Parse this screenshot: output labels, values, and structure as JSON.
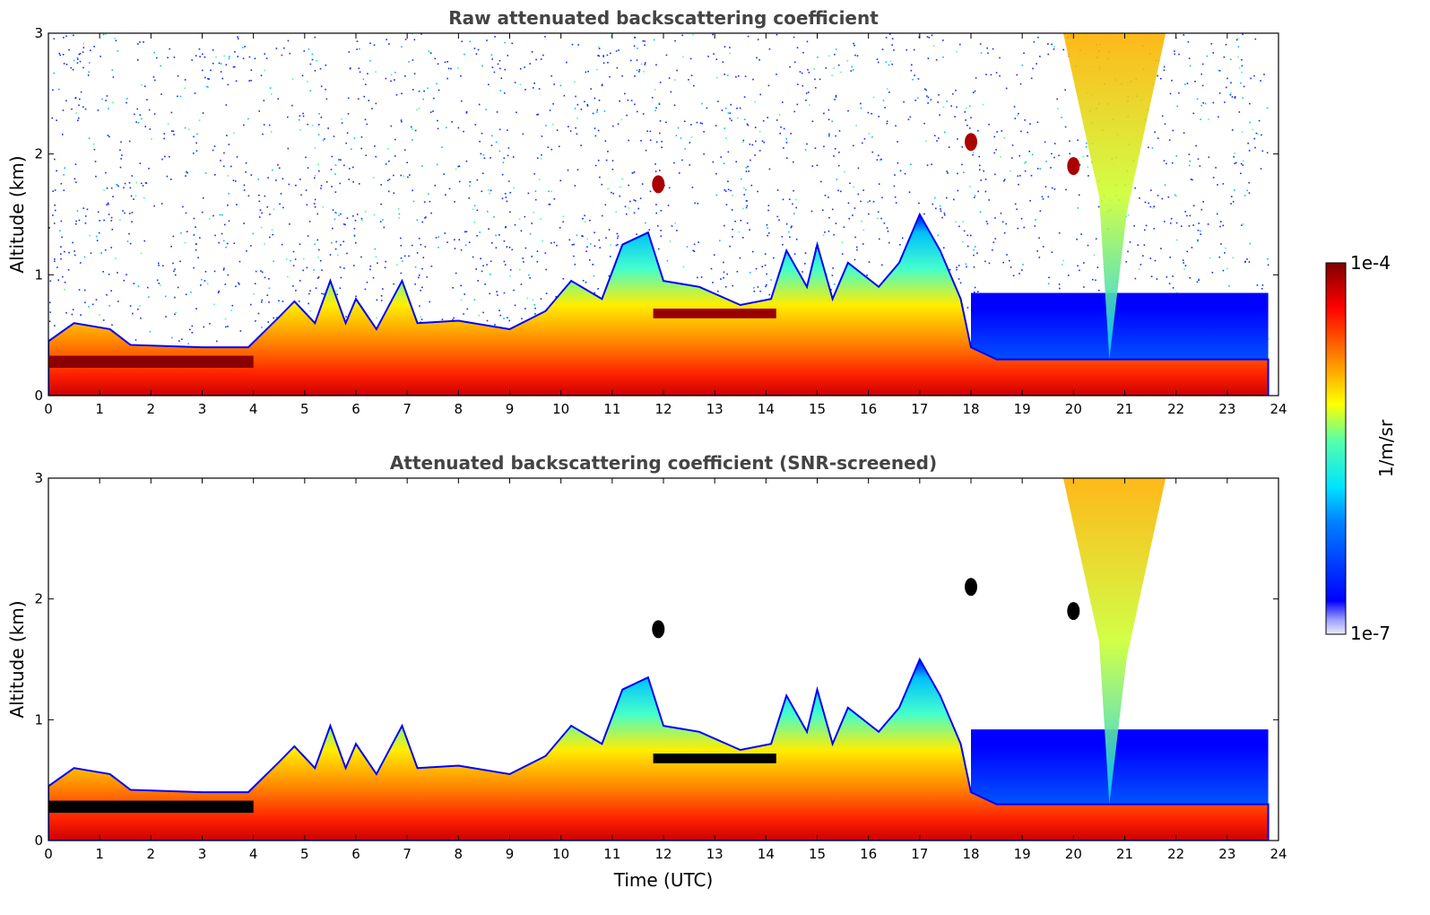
{
  "chart_data": [
    {
      "type": "heatmap",
      "title": "Raw attenuated backscattering coefficient",
      "xlabel": "",
      "ylabel": "Altitude (km)",
      "xlim": [
        0,
        24
      ],
      "ylim": [
        0,
        3
      ],
      "x_ticks": [
        "0",
        "1",
        "2",
        "3",
        "4",
        "5",
        "6",
        "7",
        "8",
        "9",
        "10",
        "11",
        "12",
        "13",
        "14",
        "15",
        "16",
        "17",
        "18",
        "19",
        "20",
        "21",
        "22",
        "23",
        "24"
      ],
      "y_ticks": [
        "0",
        "1",
        "2",
        "3"
      ],
      "grid": false,
      "boundary_layer_top_km": [
        [
          0,
          0.45
        ],
        [
          0.5,
          0.6
        ],
        [
          1.2,
          0.55
        ],
        [
          1.6,
          0.42
        ],
        [
          3.0,
          0.4
        ],
        [
          3.9,
          0.4
        ],
        [
          4.5,
          0.65
        ],
        [
          4.8,
          0.78
        ],
        [
          5.2,
          0.6
        ],
        [
          5.5,
          0.95
        ],
        [
          5.8,
          0.6
        ],
        [
          6.0,
          0.8
        ],
        [
          6.4,
          0.55
        ],
        [
          6.9,
          0.95
        ],
        [
          7.2,
          0.6
        ],
        [
          8.0,
          0.62
        ],
        [
          9.0,
          0.55
        ],
        [
          9.7,
          0.7
        ],
        [
          10.2,
          0.95
        ],
        [
          10.8,
          0.8
        ],
        [
          11.2,
          1.25
        ],
        [
          11.7,
          1.35
        ],
        [
          12.0,
          0.95
        ],
        [
          12.7,
          0.9
        ],
        [
          13.5,
          0.75
        ],
        [
          14.1,
          0.8
        ],
        [
          14.4,
          1.2
        ],
        [
          14.8,
          0.9
        ],
        [
          15.0,
          1.25
        ],
        [
          15.3,
          0.8
        ],
        [
          15.6,
          1.1
        ],
        [
          16.2,
          0.9
        ],
        [
          16.6,
          1.1
        ],
        [
          17.0,
          1.5
        ],
        [
          17.4,
          1.2
        ],
        [
          17.8,
          0.8
        ],
        [
          18.0,
          0.4
        ],
        [
          18.5,
          0.3
        ],
        [
          23.8,
          0.3
        ]
      ],
      "features": [
        {
          "kind": "stable-layer",
          "x": [
            0,
            4.0
          ],
          "y_km": 0.28,
          "level": "max"
        },
        {
          "kind": "elevated-layer",
          "x": [
            11.8,
            14.2
          ],
          "y_km": 0.68,
          "level": "max"
        },
        {
          "kind": "cloud",
          "x": 11.9,
          "y_km": 1.75
        },
        {
          "kind": "cloud",
          "x": 18.0,
          "y_km": 2.1
        },
        {
          "kind": "cloud",
          "x": 20.0,
          "y_km": 1.9
        },
        {
          "kind": "precipitation-fallstreak",
          "x": [
            19.8,
            21.8
          ],
          "y_km": [
            0.3,
            3.0
          ]
        }
      ],
      "noise_region": "above boundary layer, scattered low-level returns"
    },
    {
      "type": "heatmap",
      "title": "Attenuated backscattering coefficient (SNR-screened)",
      "xlabel": "Time (UTC)",
      "ylabel": "Altitude (km)",
      "xlim": [
        0,
        24
      ],
      "ylim": [
        0,
        3
      ],
      "x_ticks": [
        "0",
        "1",
        "2",
        "3",
        "4",
        "5",
        "6",
        "7",
        "8",
        "9",
        "10",
        "11",
        "12",
        "13",
        "14",
        "15",
        "16",
        "17",
        "18",
        "19",
        "20",
        "21",
        "22",
        "23",
        "24"
      ],
      "y_ticks": [
        "0",
        "1",
        "2",
        "3"
      ],
      "grid": false,
      "screened_region": "white (no data) where SNR below threshold",
      "saturated_color": "#000000"
    }
  ],
  "colorbar": {
    "min_label": "1e-7",
    "max_label": "1e-4",
    "unit_label": "1/m/sr",
    "colormap": "jet",
    "colors": [
      "#e8e8f8",
      "#0000ff",
      "#00aaff",
      "#33ffff",
      "#ffff00",
      "#ff6600",
      "#ff0000",
      "#800000"
    ]
  },
  "colors": {
    "background": "#ffffff",
    "title": "#444444",
    "axis": "#000000"
  }
}
